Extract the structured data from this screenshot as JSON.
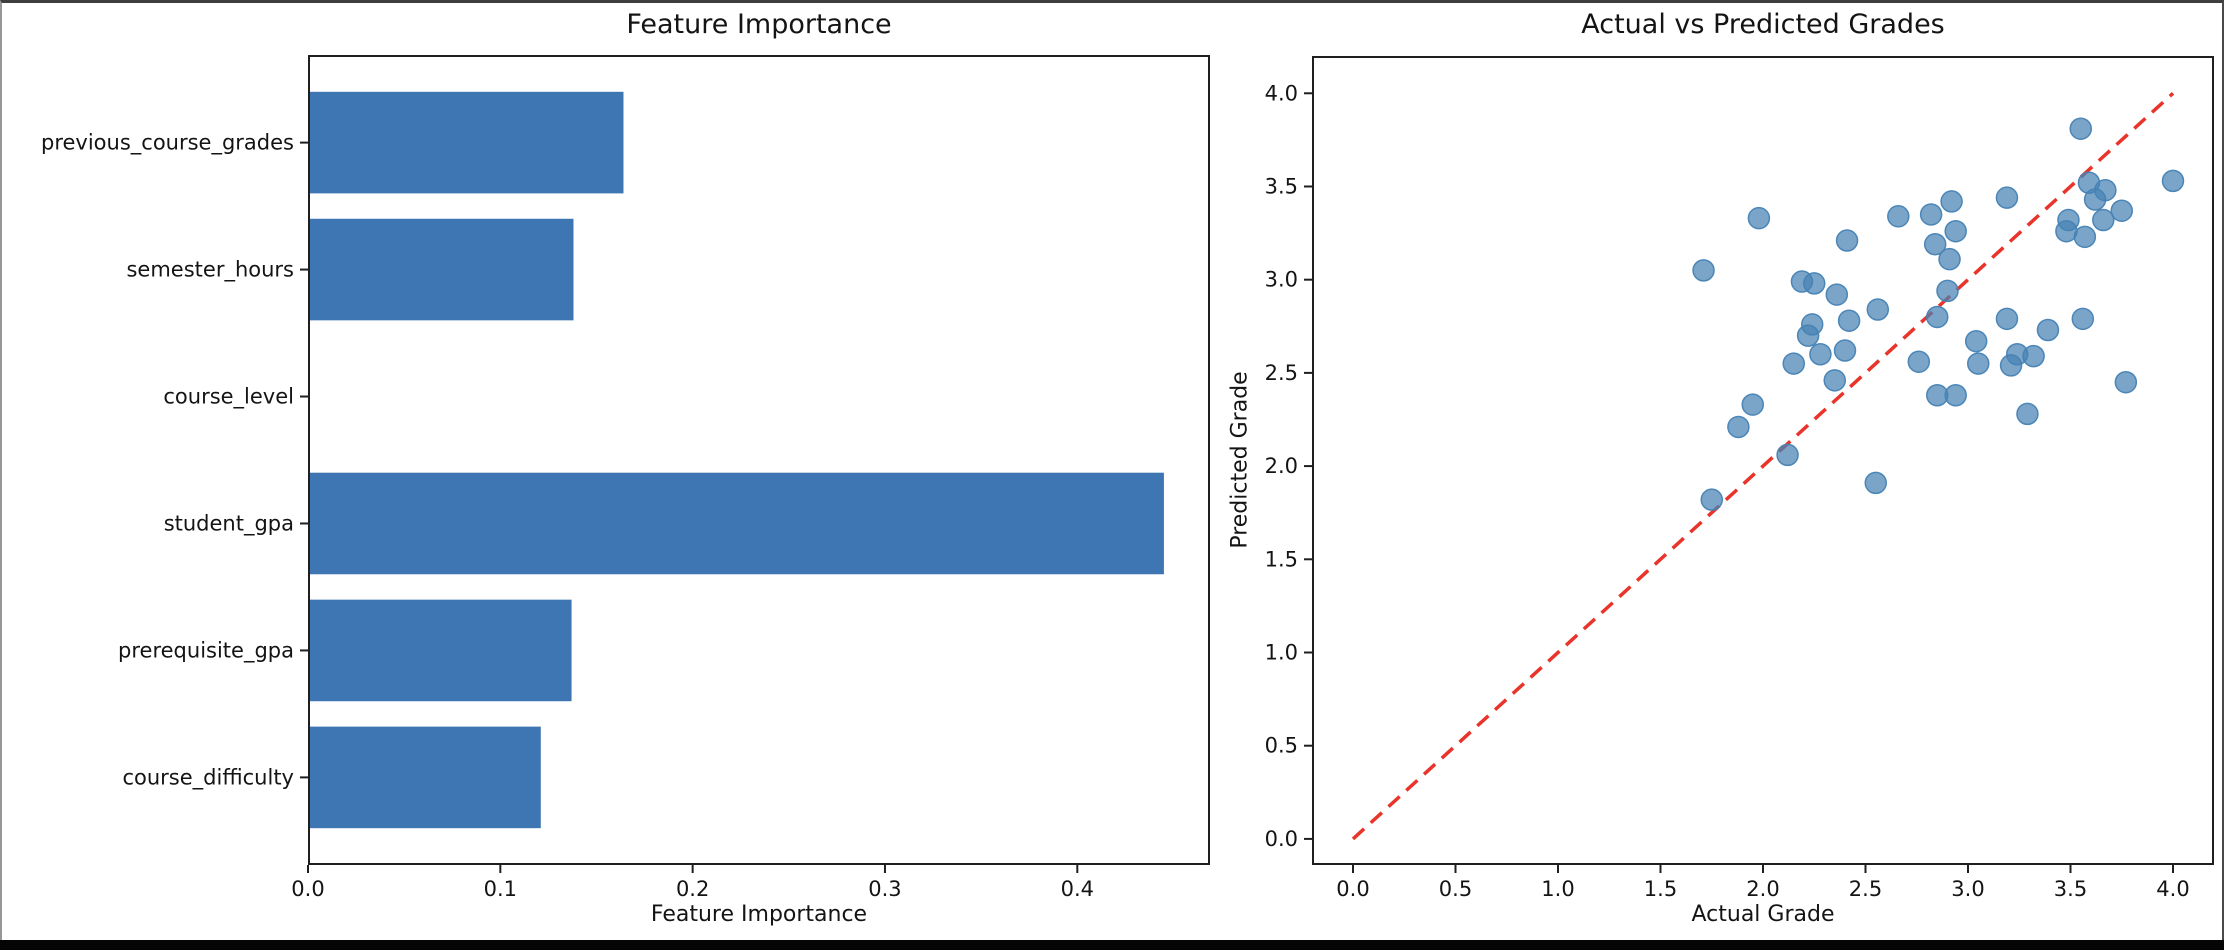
{
  "window": {
    "canvas_bg": "#ffffff",
    "backdrop_color": "#000000",
    "bottom_bar_color": "#050505",
    "spine_color": "#1f1f1f",
    "text_color": "#141414"
  },
  "chart_data": [
    {
      "id": "feature-importance",
      "type": "bar",
      "orientation": "horizontal",
      "title": "Feature Importance",
      "xlabel": "Feature Importance",
      "ylabel": "",
      "categories": [
        "previous_course_grades",
        "semester_hours",
        "course_level",
        "student_gpa",
        "prerequisite_gpa",
        "course_difficulty"
      ],
      "values": [
        0.163,
        0.137,
        0.0,
        0.444,
        0.136,
        0.12
      ],
      "xlim": [
        0,
        0.469
      ],
      "xticks": [
        0.0,
        0.1,
        0.2,
        0.3,
        0.4
      ],
      "bar_color": "#3d76b2",
      "grid": false,
      "legend": null
    },
    {
      "id": "actual-vs-predicted",
      "type": "scatter",
      "title": "Actual vs Predicted Grades",
      "xlabel": "Actual Grade",
      "ylabel": "Predicted Grade",
      "xlim": [
        -0.2,
        4.2
      ],
      "ylim": [
        -0.14,
        4.2
      ],
      "xticks": [
        0.0,
        0.5,
        1.0,
        1.5,
        2.0,
        2.5,
        3.0,
        3.5,
        4.0
      ],
      "yticks": [
        0.0,
        0.5,
        1.0,
        1.5,
        2.0,
        2.5,
        3.0,
        3.5,
        4.0
      ],
      "point_color": "#4682b4",
      "point_alpha": 0.72,
      "grid": false,
      "reference_line": {
        "x": [
          0,
          4
        ],
        "y": [
          0,
          4
        ],
        "style": "dashed",
        "color": "#e8342a"
      },
      "points": [
        [
          1.71,
          3.05
        ],
        [
          1.98,
          3.33
        ],
        [
          2.19,
          2.99
        ],
        [
          2.25,
          2.98
        ],
        [
          2.41,
          3.21
        ],
        [
          2.36,
          2.92
        ],
        [
          2.24,
          2.76
        ],
        [
          2.42,
          2.78
        ],
        [
          2.56,
          2.84
        ],
        [
          2.22,
          2.7
        ],
        [
          2.28,
          2.6
        ],
        [
          2.4,
          2.62
        ],
        [
          2.15,
          2.55
        ],
        [
          2.66,
          3.34
        ],
        [
          2.82,
          3.35
        ],
        [
          2.92,
          3.42
        ],
        [
          2.94,
          3.26
        ],
        [
          2.84,
          3.19
        ],
        [
          2.91,
          3.11
        ],
        [
          2.9,
          2.94
        ],
        [
          2.85,
          2.8
        ],
        [
          2.76,
          2.56
        ],
        [
          3.19,
          3.44
        ],
        [
          3.19,
          2.79
        ],
        [
          3.04,
          2.67
        ],
        [
          3.05,
          2.55
        ],
        [
          3.24,
          2.6
        ],
        [
          3.21,
          2.54
        ],
        [
          3.32,
          2.59
        ],
        [
          3.29,
          2.28
        ],
        [
          3.39,
          2.73
        ],
        [
          3.56,
          2.79
        ],
        [
          3.77,
          2.45
        ],
        [
          3.55,
          3.81
        ],
        [
          3.59,
          3.52
        ],
        [
          3.67,
          3.48
        ],
        [
          3.62,
          3.43
        ],
        [
          3.75,
          3.37
        ],
        [
          3.66,
          3.32
        ],
        [
          3.49,
          3.32
        ],
        [
          3.48,
          3.26
        ],
        [
          3.57,
          3.23
        ],
        [
          4.0,
          3.53
        ],
        [
          1.75,
          1.82
        ],
        [
          1.88,
          2.21
        ],
        [
          1.95,
          2.33
        ],
        [
          2.12,
          2.06
        ],
        [
          2.35,
          2.46
        ],
        [
          2.55,
          1.91
        ],
        [
          2.85,
          2.38
        ],
        [
          2.94,
          2.38
        ]
      ]
    }
  ]
}
